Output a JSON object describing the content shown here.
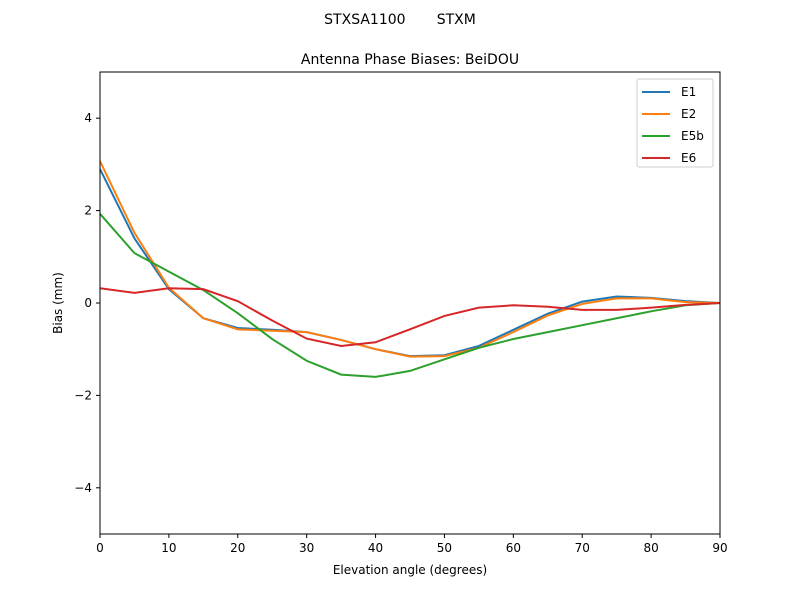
{
  "figure": {
    "suptitle": "STXSA1100       STXM"
  },
  "chart_data": {
    "type": "line",
    "title": "Antenna Phase Biases: BeiDOU",
    "xlabel": "Elevation angle (degrees)",
    "ylabel": "Bias (mm)",
    "xlim": [
      0,
      90
    ],
    "ylim": [
      -5,
      5
    ],
    "xticks": [
      0,
      10,
      20,
      30,
      40,
      50,
      60,
      70,
      80,
      90
    ],
    "yticks": [
      -4,
      -2,
      0,
      2,
      4
    ],
    "ytick_labels": [
      "−4",
      "−2",
      "0",
      "2",
      "4"
    ],
    "grid": false,
    "legend": "top-right",
    "x": [
      0,
      5,
      10,
      15,
      20,
      25,
      30,
      35,
      40,
      45,
      50,
      55,
      60,
      65,
      70,
      75,
      80,
      85,
      90
    ],
    "series": [
      {
        "name": "E1",
        "color": "#1f77b4",
        "values": [
          2.9,
          1.4,
          0.3,
          -0.33,
          -0.54,
          -0.58,
          -0.63,
          -0.8,
          -1.0,
          -1.15,
          -1.13,
          -0.93,
          -0.58,
          -0.23,
          0.03,
          0.14,
          0.11,
          0.04,
          0
        ]
      },
      {
        "name": "E2",
        "color": "#ff7f0e",
        "values": [
          3.07,
          1.52,
          0.33,
          -0.33,
          -0.57,
          -0.6,
          -0.63,
          -0.8,
          -1.0,
          -1.16,
          -1.15,
          -0.97,
          -0.63,
          -0.27,
          -0.02,
          0.1,
          0.1,
          0.02,
          0
        ]
      },
      {
        "name": "E5b",
        "color": "#2ca02c",
        "values": [
          1.93,
          1.08,
          0.68,
          0.28,
          -0.22,
          -0.78,
          -1.25,
          -1.55,
          -1.6,
          -1.47,
          -1.22,
          -0.97,
          -0.78,
          -0.63,
          -0.48,
          -0.33,
          -0.18,
          -0.05,
          0
        ]
      },
      {
        "name": "E6",
        "color": "#d62728",
        "values": [
          0.32,
          0.22,
          0.32,
          0.3,
          0.04,
          -0.38,
          -0.77,
          -0.93,
          -0.85,
          -0.57,
          -0.28,
          -0.1,
          -0.05,
          -0.08,
          -0.15,
          -0.15,
          -0.1,
          -0.04,
          0
        ]
      }
    ]
  }
}
